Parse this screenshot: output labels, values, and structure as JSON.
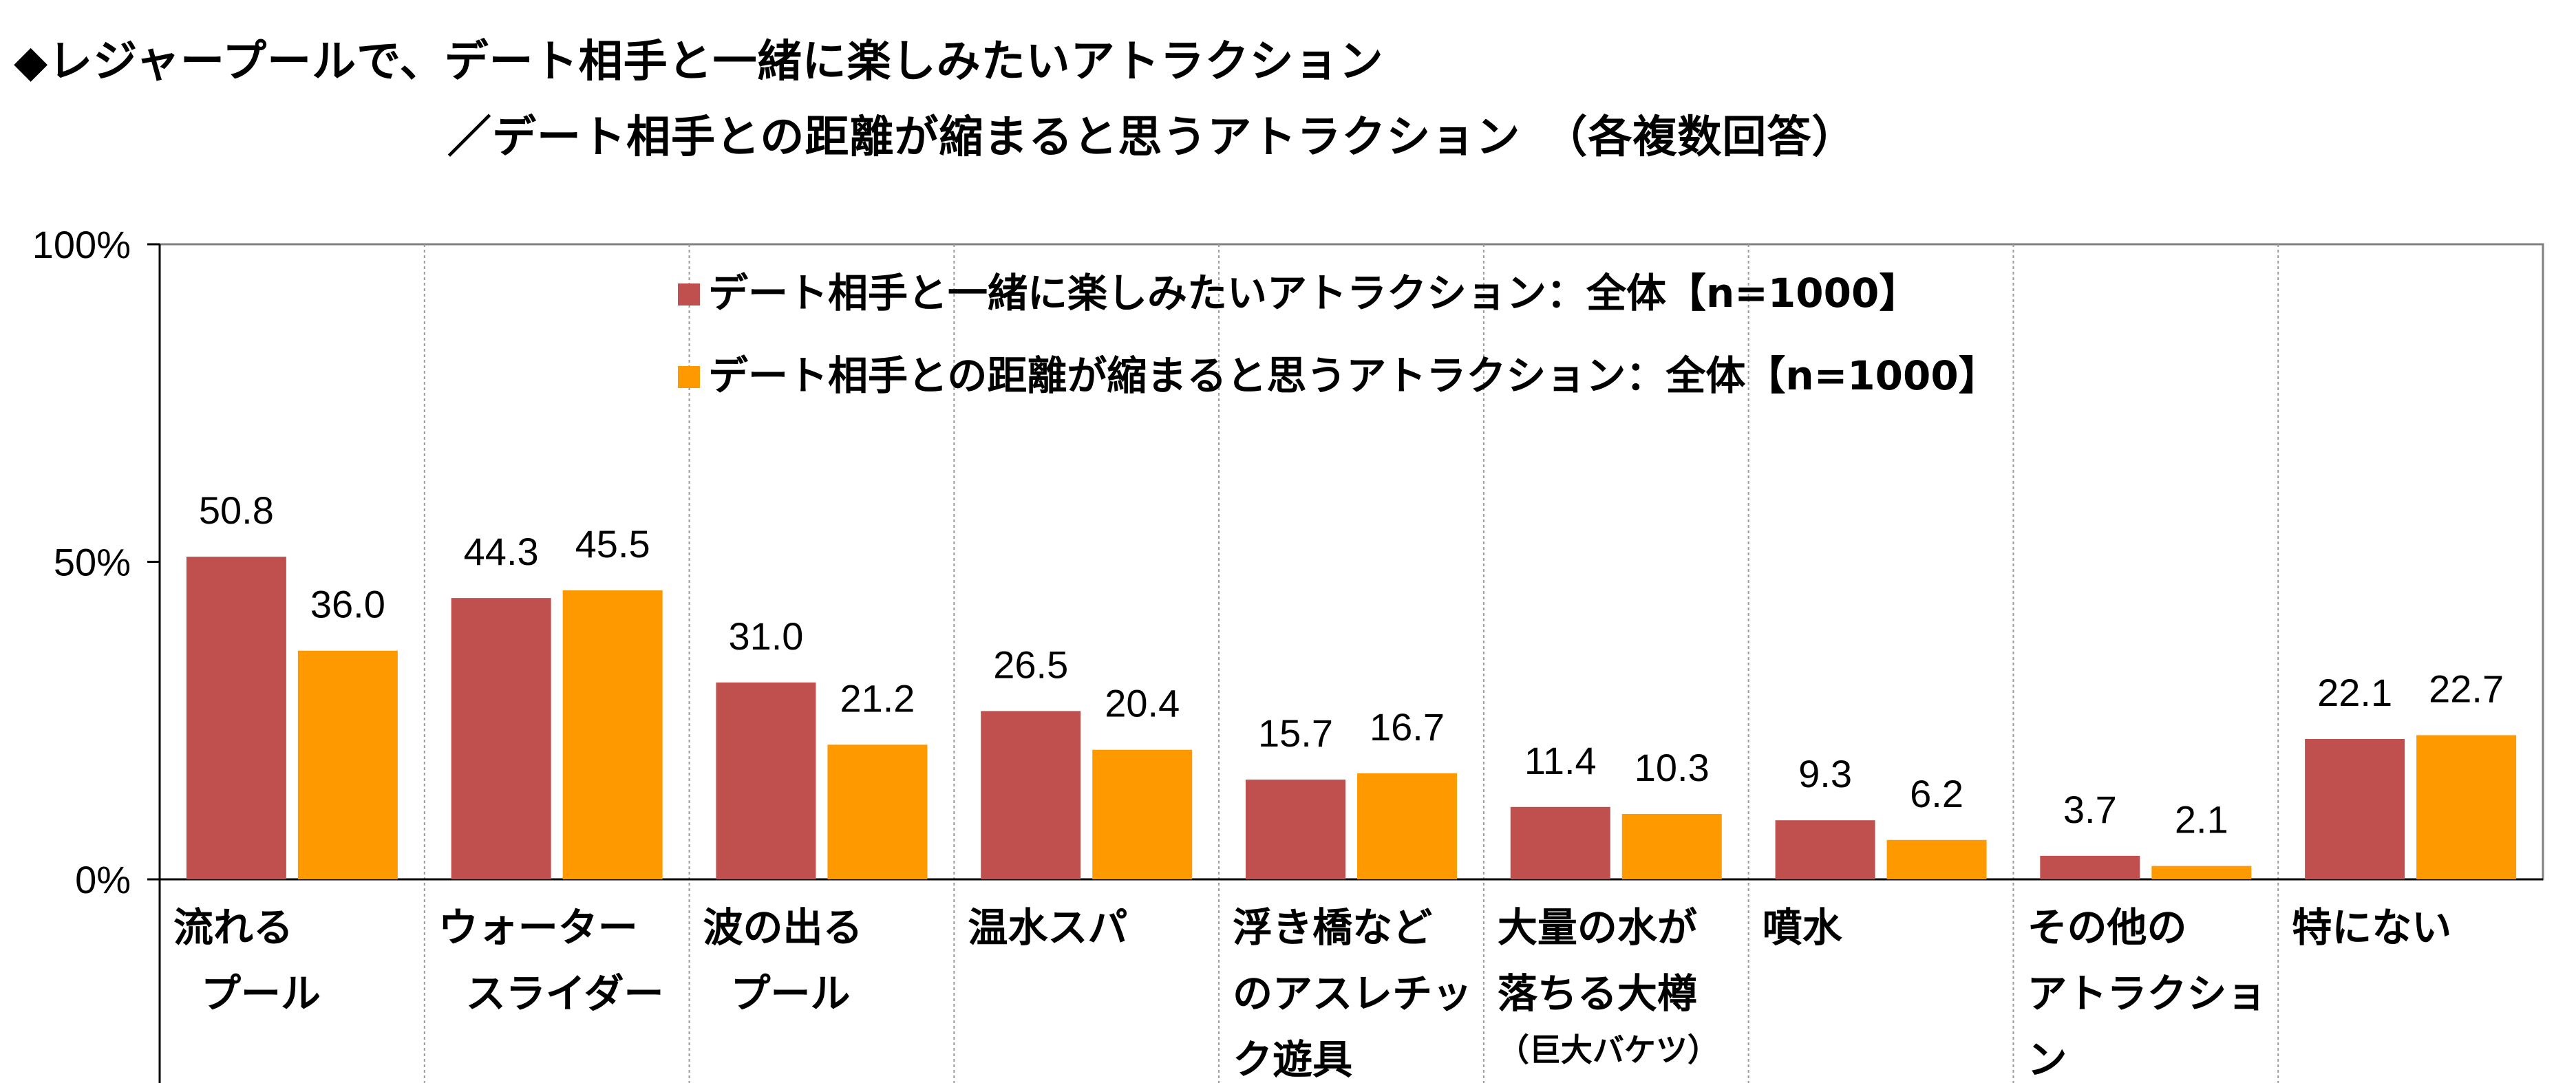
{
  "title": {
    "line1": "◆レジャープールで、デート相手と一緒に楽しみたいアトラクション",
    "line2": "／デート相手との距離が縮まると思うアトラクション　（各複数回答）"
  },
  "chart_data": {
    "type": "bar",
    "ylim": [
      0,
      100
    ],
    "yticks": [
      "0%",
      "50%",
      "100%"
    ],
    "ytick_values": [
      0,
      50,
      100
    ],
    "grid": "vertical dotted separators between categories",
    "legend_position": "top-center",
    "categories": [
      [
        "流れる",
        "プール"
      ],
      [
        "ウォーター",
        "スライダー"
      ],
      [
        "波の出る",
        "プール"
      ],
      [
        "温水スパ"
      ],
      [
        "浮き橋など",
        "のアスレチッ",
        "ク遊具"
      ],
      [
        "大量の水が",
        "落ちる大樽",
        "（巨大バケツ）"
      ],
      [
        "噴水"
      ],
      [
        "その他の",
        "アトラクショ",
        "ン"
      ],
      [
        "特にない"
      ]
    ],
    "series": [
      {
        "name": "デート相手と一緒に楽しみたいアトラクション：全体【n=1000】",
        "color": "#C0504D",
        "values": [
          50.8,
          44.3,
          31.0,
          26.5,
          15.7,
          11.4,
          9.3,
          3.7,
          22.1
        ],
        "labels": [
          "50.8",
          "44.3",
          "31.0",
          "26.5",
          "15.7",
          "11.4",
          "9.3",
          "3.7",
          "22.1"
        ]
      },
      {
        "name": "デート相手との距離が縮まると思うアトラクション：全体【n=1000】",
        "color": "#FF9900",
        "values": [
          36.0,
          45.5,
          21.2,
          20.4,
          16.7,
          10.3,
          6.2,
          2.1,
          22.7
        ],
        "labels": [
          "36.0",
          "45.5",
          "21.2",
          "20.4",
          "16.7",
          "10.3",
          "6.2",
          "2.1",
          "22.7"
        ]
      }
    ]
  }
}
